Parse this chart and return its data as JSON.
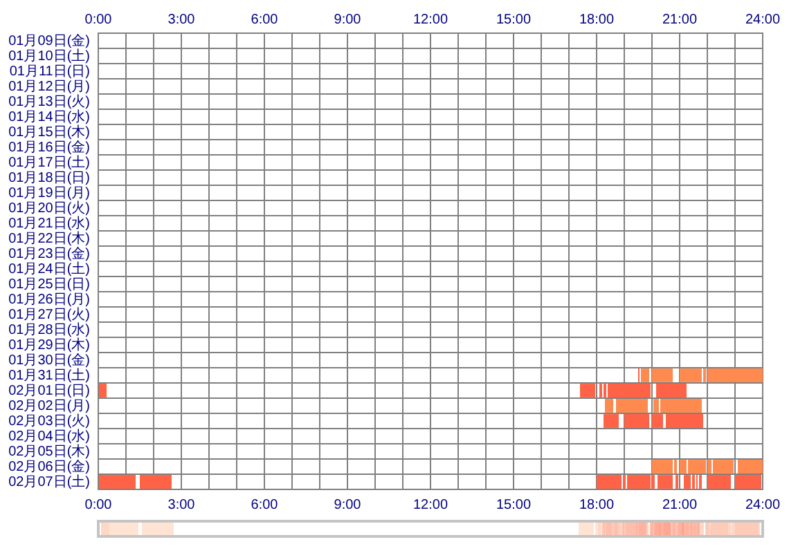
{
  "chart_data": {
    "type": "bar",
    "orientation": "horizontal",
    "categories": [
      "01月09日(金)",
      "01月10日(土)",
      "01月11日(日)",
      "01月12日(月)",
      "01月13日(火)",
      "01月14日(水)",
      "01月15日(木)",
      "01月16日(金)",
      "01月17日(土)",
      "01月18日(日)",
      "01月19日(月)",
      "01月20日(火)",
      "01月21日(水)",
      "01月22日(木)",
      "01月23日(金)",
      "01月24日(土)",
      "01月25日(日)",
      "01月26日(月)",
      "01月27日(火)",
      "01月28日(水)",
      "01月29日(木)",
      "01月30日(金)",
      "01月31日(土)",
      "02月01日(日)",
      "02月02日(月)",
      "02月03日(火)",
      "02月04日(水)",
      "02月05日(木)",
      "02月06日(金)",
      "02月07日(土)"
    ],
    "series": [
      {
        "colors": [
          null,
          null,
          null,
          null,
          null,
          null,
          null,
          null,
          null,
          null,
          null,
          null,
          null,
          null,
          null,
          null,
          null,
          null,
          null,
          null,
          null,
          null,
          "#ff6347",
          "#ff6347",
          "#ff8a50",
          "#ff6347",
          null,
          null,
          "#ff8a50",
          "#ff6347"
        ],
        "base": [
          null,
          null,
          null,
          null,
          null,
          null,
          null,
          null,
          null,
          null,
          null,
          null,
          null,
          null,
          null,
          null,
          null,
          null,
          null,
          null,
          null,
          null,
          19.5,
          0,
          18.3,
          18.25,
          null,
          null,
          20.0,
          0
        ],
        "values": [
          null,
          null,
          null,
          null,
          null,
          null,
          null,
          null,
          null,
          null,
          null,
          null,
          null,
          null,
          null,
          null,
          null,
          null,
          null,
          null,
          null,
          null,
          0.05,
          0.3,
          0.3,
          0.55,
          null,
          null,
          0.75,
          1.35
        ]
      },
      {
        "colors": [
          null,
          null,
          null,
          null,
          null,
          null,
          null,
          null,
          null,
          null,
          null,
          null,
          null,
          null,
          null,
          null,
          null,
          null,
          null,
          null,
          null,
          null,
          "#ff8a50",
          "#ff6347",
          "#ff8a50",
          "#ff6347",
          null,
          null,
          "#ff8a50",
          "#ff6347"
        ],
        "base": [
          null,
          null,
          null,
          null,
          null,
          null,
          null,
          null,
          null,
          null,
          null,
          null,
          null,
          null,
          null,
          null,
          null,
          null,
          null,
          null,
          null,
          null,
          19.6,
          17.4,
          18.7,
          19.0,
          null,
          null,
          20.8,
          1.5
        ],
        "values": [
          null,
          null,
          null,
          null,
          null,
          null,
          null,
          null,
          null,
          null,
          null,
          null,
          null,
          null,
          null,
          null,
          null,
          null,
          null,
          null,
          null,
          null,
          0.3,
          0.55,
          1.15,
          0.9,
          null,
          null,
          0.1,
          1.15
        ]
      },
      {
        "colors": [
          null,
          null,
          null,
          null,
          null,
          null,
          null,
          null,
          null,
          null,
          null,
          null,
          null,
          null,
          null,
          null,
          null,
          null,
          null,
          null,
          null,
          null,
          "#ff8a50",
          "#ff6347",
          "#ff8a50",
          "#ff6347",
          null,
          null,
          "#ff8a50",
          "#ff6347"
        ],
        "base": [
          null,
          null,
          null,
          null,
          null,
          null,
          null,
          null,
          null,
          null,
          null,
          null,
          null,
          null,
          null,
          null,
          null,
          null,
          null,
          null,
          null,
          null,
          20.0,
          18.1,
          20.05,
          20.0,
          null,
          null,
          21.0,
          18.0
        ],
        "values": [
          null,
          null,
          null,
          null,
          null,
          null,
          null,
          null,
          null,
          null,
          null,
          null,
          null,
          null,
          null,
          null,
          null,
          null,
          null,
          null,
          null,
          null,
          0.75,
          0.1,
          0.2,
          0.4,
          null,
          null,
          0.25,
          0.9
        ]
      },
      {
        "colors": [
          null,
          null,
          null,
          null,
          null,
          null,
          null,
          null,
          null,
          null,
          null,
          null,
          null,
          null,
          null,
          null,
          null,
          null,
          null,
          null,
          null,
          null,
          "#ff8a50",
          "#ff6347",
          "#ff8a50",
          "#ff6347",
          null,
          null,
          "#ff8a50",
          "#ff6347"
        ],
        "base": [
          null,
          null,
          null,
          null,
          null,
          null,
          null,
          null,
          null,
          null,
          null,
          null,
          null,
          null,
          null,
          null,
          null,
          null,
          null,
          null,
          null,
          null,
          21.0,
          18.25,
          20.3,
          20.5,
          null,
          null,
          21.3,
          18.95
        ],
        "values": [
          null,
          null,
          null,
          null,
          null,
          null,
          null,
          null,
          null,
          null,
          null,
          null,
          null,
          null,
          null,
          null,
          null,
          null,
          null,
          null,
          null,
          null,
          0.8,
          0.1,
          1.5,
          1.35,
          null,
          null,
          0.65,
          0.1
        ]
      },
      {
        "colors": [
          null,
          null,
          null,
          null,
          null,
          null,
          null,
          null,
          null,
          null,
          null,
          null,
          null,
          null,
          null,
          null,
          null,
          null,
          null,
          null,
          null,
          null,
          "#ff8a50",
          "#ff6347",
          null,
          null,
          null,
          null,
          "#ff8a50",
          "#ff6347"
        ],
        "base": [
          null,
          null,
          null,
          null,
          null,
          null,
          null,
          null,
          null,
          null,
          null,
          null,
          null,
          null,
          null,
          null,
          null,
          null,
          null,
          null,
          null,
          null,
          21.85,
          18.4,
          null,
          null,
          null,
          null,
          22.0,
          19.1
        ],
        "values": [
          null,
          null,
          null,
          null,
          null,
          null,
          null,
          null,
          null,
          null,
          null,
          null,
          null,
          null,
          null,
          null,
          null,
          null,
          null,
          null,
          null,
          null,
          0.1,
          1.55,
          null,
          null,
          null,
          null,
          0.15,
          0.85
        ]
      },
      {
        "colors": [
          null,
          null,
          null,
          null,
          null,
          null,
          null,
          null,
          null,
          null,
          null,
          null,
          null,
          null,
          null,
          null,
          null,
          null,
          null,
          null,
          null,
          null,
          "#ff8a50",
          "#ff6347",
          null,
          null,
          null,
          null,
          "#ff8a50",
          "#ff6347"
        ],
        "base": [
          null,
          null,
          null,
          null,
          null,
          null,
          null,
          null,
          null,
          null,
          null,
          null,
          null,
          null,
          null,
          null,
          null,
          null,
          null,
          null,
          null,
          null,
          22.0,
          20.15,
          null,
          null,
          null,
          null,
          22.2,
          20.0
        ],
        "values": [
          null,
          null,
          null,
          null,
          null,
          null,
          null,
          null,
          null,
          null,
          null,
          null,
          null,
          null,
          null,
          null,
          null,
          null,
          null,
          null,
          null,
          null,
          2.0,
          1.1,
          null,
          null,
          null,
          null,
          0.75,
          0.1
        ]
      },
      {
        "colors": [
          null,
          null,
          null,
          null,
          null,
          null,
          null,
          null,
          null,
          null,
          null,
          null,
          null,
          null,
          null,
          null,
          null,
          null,
          null,
          null,
          null,
          null,
          null,
          null,
          null,
          null,
          null,
          null,
          "#ff8a50",
          "#ff6347"
        ],
        "base": [
          null,
          null,
          null,
          null,
          null,
          null,
          null,
          null,
          null,
          null,
          null,
          null,
          null,
          null,
          null,
          null,
          null,
          null,
          null,
          null,
          null,
          null,
          null,
          null,
          null,
          null,
          null,
          null,
          23.1,
          20.2
        ],
        "values": [
          null,
          null,
          null,
          null,
          null,
          null,
          null,
          null,
          null,
          null,
          null,
          null,
          null,
          null,
          null,
          null,
          null,
          null,
          null,
          null,
          null,
          null,
          null,
          null,
          null,
          null,
          null,
          null,
          0.9,
          0.55
        ]
      },
      {
        "colors": [
          null,
          null,
          null,
          null,
          null,
          null,
          null,
          null,
          null,
          null,
          null,
          null,
          null,
          null,
          null,
          null,
          null,
          null,
          null,
          null,
          null,
          null,
          null,
          null,
          null,
          null,
          null,
          null,
          null,
          "#ff6347"
        ],
        "base": [
          null,
          null,
          null,
          null,
          null,
          null,
          null,
          null,
          null,
          null,
          null,
          null,
          null,
          null,
          null,
          null,
          null,
          null,
          null,
          null,
          null,
          null,
          null,
          null,
          null,
          null,
          null,
          null,
          null,
          20.85
        ],
        "values": [
          null,
          null,
          null,
          null,
          null,
          null,
          null,
          null,
          null,
          null,
          null,
          null,
          null,
          null,
          null,
          null,
          null,
          null,
          null,
          null,
          null,
          null,
          null,
          null,
          null,
          null,
          null,
          null,
          null,
          0.1
        ]
      },
      {
        "colors": [
          null,
          null,
          null,
          null,
          null,
          null,
          null,
          null,
          null,
          null,
          null,
          null,
          null,
          null,
          null,
          null,
          null,
          null,
          null,
          null,
          null,
          null,
          null,
          null,
          null,
          null,
          null,
          null,
          null,
          "#ff6347"
        ],
        "base": [
          null,
          null,
          null,
          null,
          null,
          null,
          null,
          null,
          null,
          null,
          null,
          null,
          null,
          null,
          null,
          null,
          null,
          null,
          null,
          null,
          null,
          null,
          null,
          null,
          null,
          null,
          null,
          null,
          null,
          21.15
        ],
        "values": [
          null,
          null,
          null,
          null,
          null,
          null,
          null,
          null,
          null,
          null,
          null,
          null,
          null,
          null,
          null,
          null,
          null,
          null,
          null,
          null,
          null,
          null,
          null,
          null,
          null,
          null,
          null,
          null,
          null,
          0.25
        ]
      },
      {
        "colors": [
          null,
          null,
          null,
          null,
          null,
          null,
          null,
          null,
          null,
          null,
          null,
          null,
          null,
          null,
          null,
          null,
          null,
          null,
          null,
          null,
          null,
          null,
          null,
          null,
          null,
          null,
          null,
          null,
          null,
          "#ff6347"
        ],
        "base": [
          null,
          null,
          null,
          null,
          null,
          null,
          null,
          null,
          null,
          null,
          null,
          null,
          null,
          null,
          null,
          null,
          null,
          null,
          null,
          null,
          null,
          null,
          null,
          null,
          null,
          null,
          null,
          null,
          null,
          21.45
        ],
        "values": [
          null,
          null,
          null,
          null,
          null,
          null,
          null,
          null,
          null,
          null,
          null,
          null,
          null,
          null,
          null,
          null,
          null,
          null,
          null,
          null,
          null,
          null,
          null,
          null,
          null,
          null,
          null,
          null,
          null,
          0.1
        ]
      },
      {
        "colors": [
          null,
          null,
          null,
          null,
          null,
          null,
          null,
          null,
          null,
          null,
          null,
          null,
          null,
          null,
          null,
          null,
          null,
          null,
          null,
          null,
          null,
          null,
          null,
          null,
          null,
          null,
          null,
          null,
          null,
          "#ff6347"
        ],
        "base": [
          null,
          null,
          null,
          null,
          null,
          null,
          null,
          null,
          null,
          null,
          null,
          null,
          null,
          null,
          null,
          null,
          null,
          null,
          null,
          null,
          null,
          null,
          null,
          null,
          null,
          null,
          null,
          null,
          null,
          21.6
        ],
        "values": [
          null,
          null,
          null,
          null,
          null,
          null,
          null,
          null,
          null,
          null,
          null,
          null,
          null,
          null,
          null,
          null,
          null,
          null,
          null,
          null,
          null,
          null,
          null,
          null,
          null,
          null,
          null,
          null,
          null,
          0.05
        ]
      },
      {
        "colors": [
          null,
          null,
          null,
          null,
          null,
          null,
          null,
          null,
          null,
          null,
          null,
          null,
          null,
          null,
          null,
          null,
          null,
          null,
          null,
          null,
          null,
          null,
          null,
          null,
          null,
          null,
          null,
          null,
          null,
          "#ff6347"
        ],
        "base": [
          null,
          null,
          null,
          null,
          null,
          null,
          null,
          null,
          null,
          null,
          null,
          null,
          null,
          null,
          null,
          null,
          null,
          null,
          null,
          null,
          null,
          null,
          null,
          null,
          null,
          null,
          null,
          null,
          null,
          21.7
        ],
        "values": [
          null,
          null,
          null,
          null,
          null,
          null,
          null,
          null,
          null,
          null,
          null,
          null,
          null,
          null,
          null,
          null,
          null,
          null,
          null,
          null,
          null,
          null,
          null,
          null,
          null,
          null,
          null,
          null,
          null,
          0.1
        ]
      },
      {
        "colors": [
          null,
          null,
          null,
          null,
          null,
          null,
          null,
          null,
          null,
          null,
          null,
          null,
          null,
          null,
          null,
          null,
          null,
          null,
          null,
          null,
          null,
          null,
          null,
          null,
          null,
          null,
          null,
          null,
          null,
          "#ff6347"
        ],
        "base": [
          null,
          null,
          null,
          null,
          null,
          null,
          null,
          null,
          null,
          null,
          null,
          null,
          null,
          null,
          null,
          null,
          null,
          null,
          null,
          null,
          null,
          null,
          null,
          null,
          null,
          null,
          null,
          null,
          null,
          22.0
        ],
        "values": [
          null,
          null,
          null,
          null,
          null,
          null,
          null,
          null,
          null,
          null,
          null,
          null,
          null,
          null,
          null,
          null,
          null,
          null,
          null,
          null,
          null,
          null,
          null,
          null,
          null,
          null,
          null,
          null,
          null,
          0.85
        ]
      },
      {
        "colors": [
          null,
          null,
          null,
          null,
          null,
          null,
          null,
          null,
          null,
          null,
          null,
          null,
          null,
          null,
          null,
          null,
          null,
          null,
          null,
          null,
          null,
          null,
          null,
          null,
          null,
          null,
          null,
          null,
          null,
          "#ff6347"
        ],
        "base": [
          null,
          null,
          null,
          null,
          null,
          null,
          null,
          null,
          null,
          null,
          null,
          null,
          null,
          null,
          null,
          null,
          null,
          null,
          null,
          null,
          null,
          null,
          null,
          null,
          null,
          null,
          null,
          null,
          null,
          23.0
        ],
        "values": [
          null,
          null,
          null,
          null,
          null,
          null,
          null,
          null,
          null,
          null,
          null,
          null,
          null,
          null,
          null,
          null,
          null,
          null,
          null,
          null,
          null,
          null,
          null,
          null,
          null,
          null,
          null,
          null,
          null,
          0.95
        ]
      }
    ],
    "xlim": [
      0,
      24
    ],
    "xticks": [
      {
        "value": 0,
        "label": "0:00"
      },
      {
        "value": 1,
        "label": null
      },
      {
        "value": 2,
        "label": null
      },
      {
        "value": 3,
        "label": "3:00"
      },
      {
        "value": 4,
        "label": null
      },
      {
        "value": 5,
        "label": null
      },
      {
        "value": 6,
        "label": "6:00"
      },
      {
        "value": 7,
        "label": null
      },
      {
        "value": 8,
        "label": null
      },
      {
        "value": 9,
        "label": "9:00"
      },
      {
        "value": 10,
        "label": null
      },
      {
        "value": 11,
        "label": null
      },
      {
        "value": 12,
        "label": "12:00"
      },
      {
        "value": 13,
        "label": null
      },
      {
        "value": 14,
        "label": null
      },
      {
        "value": 15,
        "label": "15:00"
      },
      {
        "value": 16,
        "label": null
      },
      {
        "value": 17,
        "label": null
      },
      {
        "value": 18,
        "label": "18:00"
      },
      {
        "value": 19,
        "label": null
      },
      {
        "value": 20,
        "label": null
      },
      {
        "value": 21,
        "label": "21:00"
      },
      {
        "value": 22,
        "label": null
      },
      {
        "value": 23,
        "label": null
      },
      {
        "value": 24,
        "label": "24:00"
      }
    ],
    "x2lim": [
      0,
      24
    ],
    "x2ticks": [
      {
        "value": 0,
        "label": "0:00"
      },
      {
        "value": 1,
        "label": null
      },
      {
        "value": 2,
        "label": null
      },
      {
        "value": 3,
        "label": "3:00"
      },
      {
        "value": 4,
        "label": null
      },
      {
        "value": 5,
        "label": null
      },
      {
        "value": 6,
        "label": "6:00"
      },
      {
        "value": 7,
        "label": null
      },
      {
        "value": 8,
        "label": null
      },
      {
        "value": 9,
        "label": "9:00"
      },
      {
        "value": 10,
        "label": null
      },
      {
        "value": 11,
        "label": null
      },
      {
        "value": 12,
        "label": "12:00"
      },
      {
        "value": 13,
        "label": null
      },
      {
        "value": 14,
        "label": null
      },
      {
        "value": 15,
        "label": "15:00"
      },
      {
        "value": 16,
        "label": null
      },
      {
        "value": 17,
        "label": null
      },
      {
        "value": 18,
        "label": "18:00"
      },
      {
        "value": 19,
        "label": null
      },
      {
        "value": 20,
        "label": null
      },
      {
        "value": 21,
        "label": "21:00"
      },
      {
        "value": 22,
        "label": null
      },
      {
        "value": 23,
        "label": null
      },
      {
        "value": 24,
        "label": "24:00"
      }
    ],
    "grid": true
  }
}
